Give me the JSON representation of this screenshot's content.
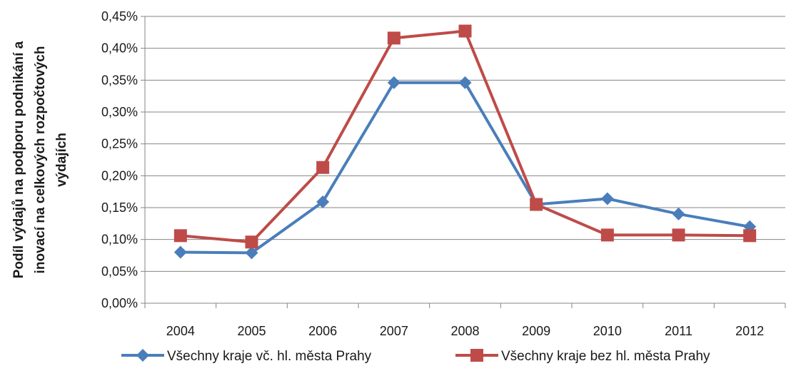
{
  "chart_data": {
    "type": "line",
    "title": "",
    "xlabel": "",
    "ylabel_lines": [
      "Podíl výdajů na podporu podnikání a",
      "inovací na celkových rozpočtových",
      "výdajích"
    ],
    "categories": [
      "2004",
      "2005",
      "2006",
      "2007",
      "2008",
      "2009",
      "2010",
      "2011",
      "2012"
    ],
    "y_ticks": [
      "0,00%",
      "0,05%",
      "0,10%",
      "0,15%",
      "0,20%",
      "0,25%",
      "0,30%",
      "0,35%",
      "0,40%",
      "0,45%"
    ],
    "ylim": [
      0,
      0.45
    ],
    "grid": true,
    "legend_position": "bottom",
    "series": [
      {
        "name": "Všechny kraje vč. hl. města Prahy",
        "color": "#4a7ebb",
        "marker": "diamond",
        "values": [
          0.08,
          0.079,
          0.159,
          0.346,
          0.346,
          0.155,
          0.164,
          0.14,
          0.12
        ]
      },
      {
        "name": "Všechny kraje bez hl. města Prahy",
        "color": "#be4b48",
        "marker": "square",
        "values": [
          0.106,
          0.096,
          0.213,
          0.416,
          0.427,
          0.155,
          0.107,
          0.107,
          0.106
        ]
      }
    ]
  }
}
